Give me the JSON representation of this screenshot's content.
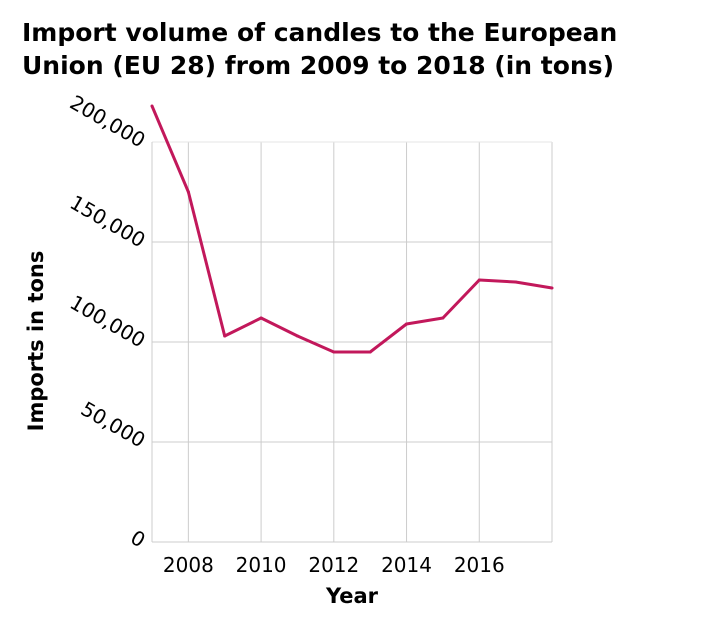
{
  "chart_data": {
    "type": "line",
    "title": "Import volume of candles to the European Union (EU 28) from 2009 to 2018 (in tons)",
    "xlabel": "Year",
    "ylabel": "Imports in tons",
    "xlim": [
      2007,
      2018
    ],
    "ylim": [
      0,
      200000
    ],
    "x_ticks": [
      2008,
      2010,
      2012,
      2014,
      2016
    ],
    "y_ticks": [
      0,
      50000,
      100000,
      150000,
      200000
    ],
    "y_tick_labels": [
      "0",
      "50,000",
      "100,000",
      "150,000",
      "200,000"
    ],
    "grid": true,
    "line_color": "#c2185b",
    "x": [
      2007,
      2008,
      2009,
      2010,
      2011,
      2012,
      2013,
      2014,
      2015,
      2016,
      2017,
      2018
    ],
    "values": [
      218000,
      175000,
      103000,
      112000,
      103000,
      95000,
      95000,
      109000,
      112000,
      131000,
      130000,
      127000
    ]
  }
}
